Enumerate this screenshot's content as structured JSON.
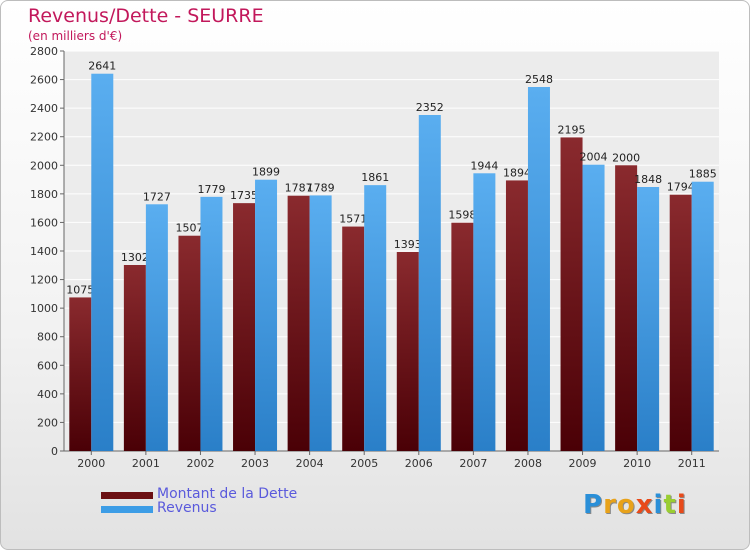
{
  "title": "Revenus/Dette - SEURRE",
  "subtitle": "(en milliers d'€)",
  "colors": {
    "dette": "#7a1418",
    "revenus": "#3d9de6",
    "accent": "#c2185b"
  },
  "legend": [
    {
      "label": "Montant de la Dette",
      "color": "#6b0f12"
    },
    {
      "label": "Revenus",
      "color": "#3d9de6"
    }
  ],
  "logo": {
    "text": "Proxiti",
    "letter_colors": [
      "#2a8fd8",
      "#e8a21a",
      "#e8a21a",
      "#e84a1a",
      "#2a8fd8",
      "#9acd32",
      "#e84a1a"
    ]
  },
  "chart_data": {
    "type": "bar",
    "title": "Revenus/Dette - SEURRE",
    "subtitle": "(en milliers d'€)",
    "categories": [
      "2000",
      "2001",
      "2002",
      "2003",
      "2004",
      "2005",
      "2006",
      "2007",
      "2008",
      "2009",
      "2010",
      "2011"
    ],
    "series": [
      {
        "name": "Montant de la Dette",
        "values": [
          1075,
          1302,
          1507,
          1735,
          1787,
          1571,
          1393,
          1598,
          1894,
          2195,
          2000,
          1794
        ]
      },
      {
        "name": "Revenus",
        "values": [
          2641,
          1727,
          1779,
          1899,
          1789,
          1861,
          2352,
          1944,
          2548,
          2004,
          1848,
          1885
        ]
      }
    ],
    "ylim": [
      0,
      2800
    ],
    "yticks": [
      0,
      200,
      400,
      600,
      800,
      1000,
      1200,
      1400,
      1600,
      1800,
      2000,
      2200,
      2400,
      2600,
      2800
    ],
    "grid": true,
    "legend_position": "bottom-left"
  }
}
